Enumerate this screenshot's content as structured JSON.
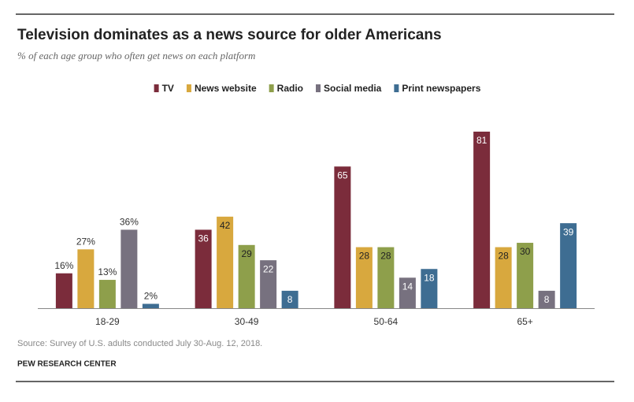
{
  "chart_data": {
    "type": "bar",
    "title": "Television dominates as a news source for older Americans",
    "subtitle": "% of each age group who often get news on each platform",
    "categories": [
      "18-29",
      "30-49",
      "50-64",
      "65+"
    ],
    "series": [
      {
        "name": "TV",
        "color": "#7b2c3b",
        "values": [
          16,
          36,
          65,
          81
        ],
        "value_labels": [
          "16%",
          "36",
          "65",
          "81"
        ]
      },
      {
        "name": "News website",
        "color": "#d8a83e",
        "values": [
          27,
          42,
          28,
          28
        ],
        "value_labels": [
          "27%",
          "42",
          "28",
          "28"
        ]
      },
      {
        "name": "Radio",
        "color": "#8e9f4b",
        "values": [
          13,
          29,
          28,
          30
        ],
        "value_labels": [
          "13%",
          "29",
          "28",
          "30"
        ]
      },
      {
        "name": "Social media",
        "color": "#77717f",
        "values": [
          36,
          22,
          14,
          8
        ],
        "value_labels": [
          "36%",
          "22",
          "14",
          "8"
        ]
      },
      {
        "name": "Print newspapers",
        "color": "#3e6d92",
        "values": [
          2,
          8,
          18,
          39
        ],
        "value_labels": [
          "2%",
          "8",
          "18",
          "39"
        ]
      }
    ],
    "source": "Source: Survey of U.S. adults conducted July 30-Aug. 12, 2018.",
    "credit": "PEW RESEARCH CENTER"
  }
}
